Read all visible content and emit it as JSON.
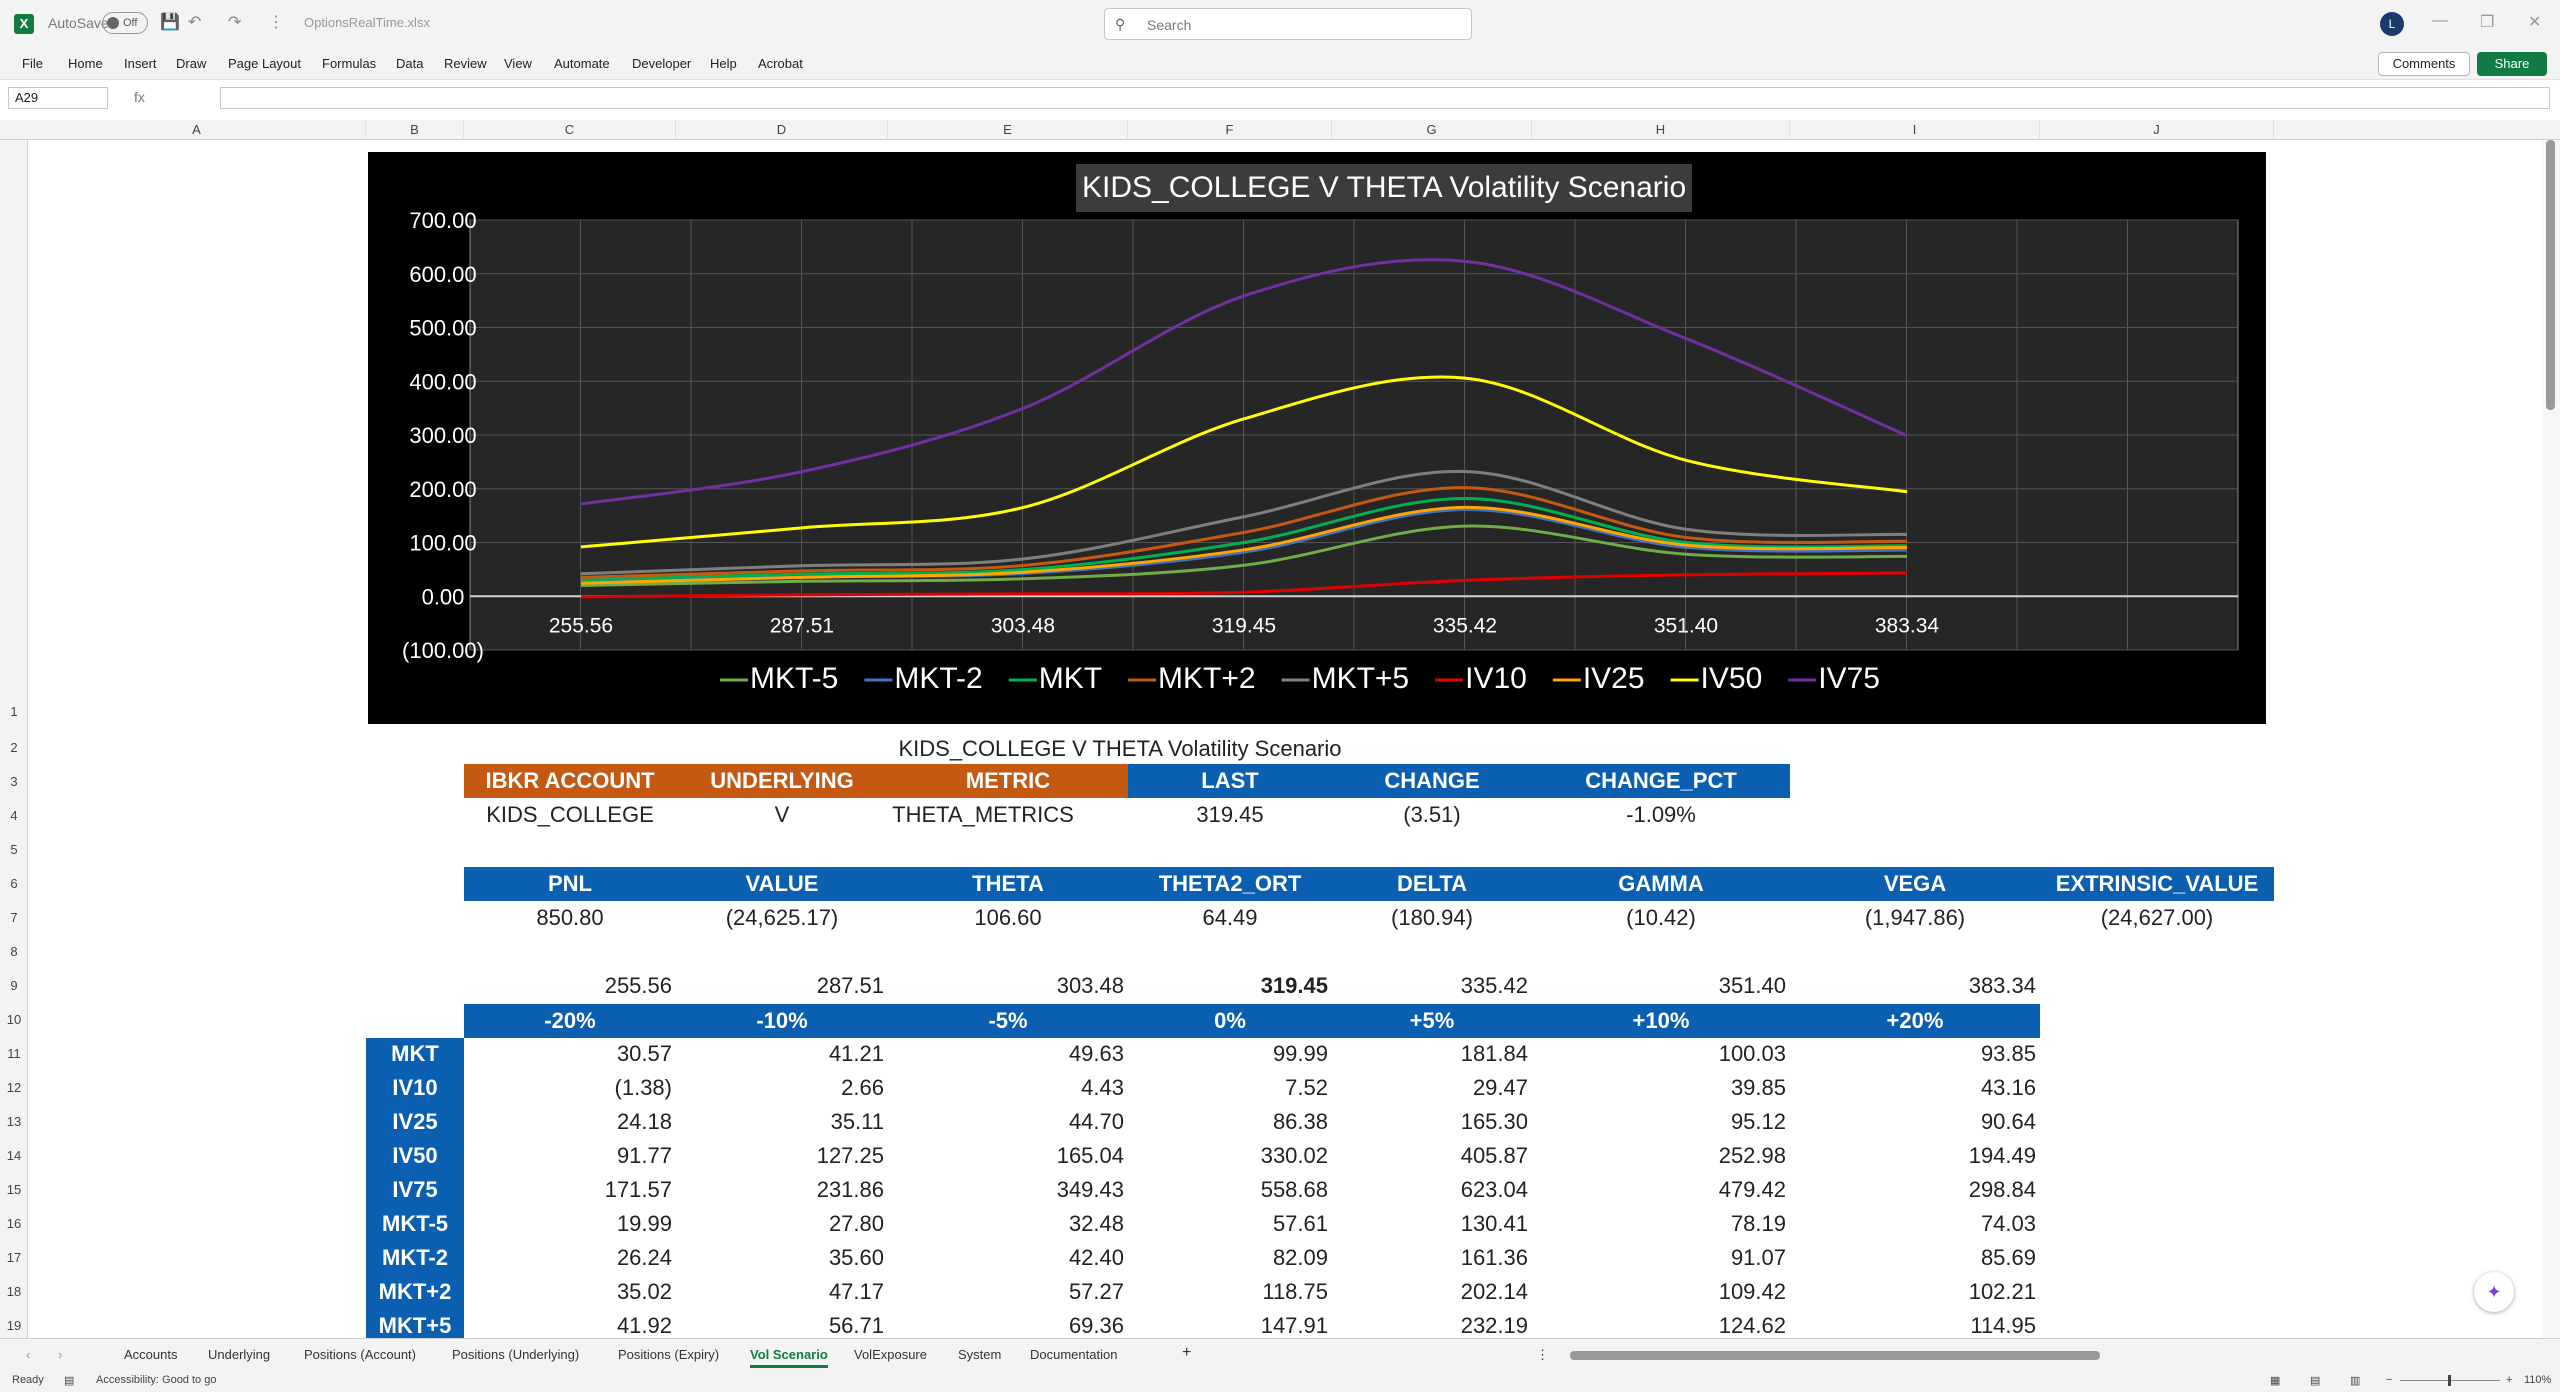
{
  "titlebar": {
    "app_icon": "excel-icon",
    "autosave_label": "AutoSave",
    "autosave_state": "Off",
    "filename": "OptionsRealTime.xlsx",
    "search_placeholder": "Search",
    "avatar_initial": "L"
  },
  "menu": [
    "File",
    "Home",
    "Insert",
    "Draw",
    "Page Layout",
    "Formulas",
    "Data",
    "Review",
    "View",
    "Automate",
    "Developer",
    "Help",
    "Acrobat"
  ],
  "buttons": {
    "comments": "Comments",
    "share": "Share"
  },
  "formula_bar": {
    "namebox": "A29",
    "fx": "fx",
    "formula": ""
  },
  "columns": [
    "A",
    "B",
    "C",
    "D",
    "E",
    "F",
    "G",
    "H",
    "I",
    "J"
  ],
  "rows": [
    "1",
    "2",
    "3",
    "4",
    "5",
    "6",
    "7",
    "8",
    "9",
    "10",
    "11",
    "12",
    "13",
    "14",
    "15",
    "16",
    "17",
    "18",
    "19"
  ],
  "chart_data": {
    "type": "line",
    "title": "KIDS_COLLEGE V THETA Volatility Scenario",
    "categories": [
      "255.56",
      "287.51",
      "303.48",
      "319.45",
      "335.42",
      "351.40",
      "383.34"
    ],
    "ylim": [
      -100,
      700
    ],
    "yticks": [
      "(100.00)",
      "0.00",
      "100.00",
      "200.00",
      "300.00",
      "400.00",
      "500.00",
      "600.00",
      "700.00"
    ],
    "grid": true,
    "legend_position": "bottom",
    "series": [
      {
        "name": "MKT-5",
        "color": "#70ad47",
        "values": [
          19.99,
          27.8,
          32.48,
          57.61,
          130.41,
          78.19,
          74.03
        ]
      },
      {
        "name": "MKT-2",
        "color": "#4472c4",
        "values": [
          26.24,
          35.6,
          42.4,
          82.09,
          161.36,
          91.07,
          85.69
        ]
      },
      {
        "name": "MKT",
        "color": "#00b050",
        "values": [
          30.57,
          41.21,
          49.63,
          99.99,
          181.84,
          100.03,
          93.85
        ]
      },
      {
        "name": "MKT+2",
        "color": "#c65911",
        "values": [
          35.02,
          47.17,
          57.27,
          118.75,
          202.14,
          109.42,
          102.21
        ]
      },
      {
        "name": "MKT+5",
        "color": "#7f7f7f",
        "values": [
          41.92,
          56.71,
          69.36,
          147.91,
          232.19,
          124.62,
          114.95
        ]
      },
      {
        "name": "IV10",
        "color": "#e00000",
        "values": [
          -1.38,
          2.66,
          4.43,
          7.52,
          29.47,
          39.85,
          43.16
        ]
      },
      {
        "name": "IV25",
        "color": "#ffa500",
        "values": [
          24.18,
          35.11,
          44.7,
          86.38,
          165.3,
          95.12,
          90.64
        ]
      },
      {
        "name": "IV50",
        "color": "#ffff00",
        "values": [
          91.77,
          127.25,
          165.04,
          330.02,
          405.87,
          252.98,
          194.49
        ]
      },
      {
        "name": "IV75",
        "color": "#7030a0",
        "values": [
          171.57,
          231.86,
          349.43,
          558.68,
          623.04,
          479.42,
          298.84
        ]
      }
    ]
  },
  "sheet": {
    "title": "KIDS_COLLEGE V THETA Volatility Scenario",
    "account_headers": [
      "IBKR ACCOUNT",
      "UNDERLYING",
      "METRIC"
    ],
    "price_headers": [
      "LAST",
      "CHANGE",
      "CHANGE_PCT"
    ],
    "account_row": [
      "KIDS_COLLEGE",
      "V",
      "THETA_METRICS"
    ],
    "price_row": [
      "319.45",
      "(3.51)",
      "-1.09%"
    ],
    "metric_headers": [
      "PNL",
      "VALUE",
      "THETA",
      "THETA2_ORT",
      "DELTA",
      "GAMMA",
      "VEGA",
      "EXTRINSIC_VALUE"
    ],
    "metric_values": [
      "850.80",
      "(24,625.17)",
      "106.60",
      "64.49",
      "(180.94)",
      "(10.42)",
      "(1,947.86)",
      "(24,627.00)"
    ],
    "price_levels": [
      "255.56",
      "287.51",
      "303.48",
      "319.45",
      "335.42",
      "351.40",
      "383.34"
    ],
    "pct_headers": [
      "-20%",
      "-10%",
      "-5%",
      "0%",
      "+5%",
      "+10%",
      "+20%"
    ],
    "scenario_rows": [
      {
        "label": "MKT",
        "values": [
          "30.57",
          "41.21",
          "49.63",
          "99.99",
          "181.84",
          "100.03",
          "93.85"
        ]
      },
      {
        "label": "IV10",
        "values": [
          "(1.38)",
          "2.66",
          "4.43",
          "7.52",
          "29.47",
          "39.85",
          "43.16"
        ]
      },
      {
        "label": "IV25",
        "values": [
          "24.18",
          "35.11",
          "44.70",
          "86.38",
          "165.30",
          "95.12",
          "90.64"
        ]
      },
      {
        "label": "IV50",
        "values": [
          "91.77",
          "127.25",
          "165.04",
          "330.02",
          "405.87",
          "252.98",
          "194.49"
        ]
      },
      {
        "label": "IV75",
        "values": [
          "171.57",
          "231.86",
          "349.43",
          "558.68",
          "623.04",
          "479.42",
          "298.84"
        ]
      },
      {
        "label": "MKT-5",
        "values": [
          "19.99",
          "27.80",
          "32.48",
          "57.61",
          "130.41",
          "78.19",
          "74.03"
        ]
      },
      {
        "label": "MKT-2",
        "values": [
          "26.24",
          "35.60",
          "42.40",
          "82.09",
          "161.36",
          "91.07",
          "85.69"
        ]
      },
      {
        "label": "MKT+2",
        "values": [
          "35.02",
          "47.17",
          "57.27",
          "118.75",
          "202.14",
          "109.42",
          "102.21"
        ]
      },
      {
        "label": "MKT+5",
        "values": [
          "41.92",
          "56.71",
          "69.36",
          "147.91",
          "232.19",
          "124.62",
          "114.95"
        ]
      }
    ]
  },
  "sheet_tabs": [
    "Accounts",
    "Underlying",
    "Positions (Account)",
    "Positions (Underlying)",
    "Positions (Expiry)",
    "Vol Scenario",
    "VolExposure",
    "System",
    "Documentation"
  ],
  "active_tab": "Vol Scenario",
  "status": {
    "ready": "Ready",
    "accessibility": "Accessibility: Good to go",
    "zoom": "110%"
  }
}
